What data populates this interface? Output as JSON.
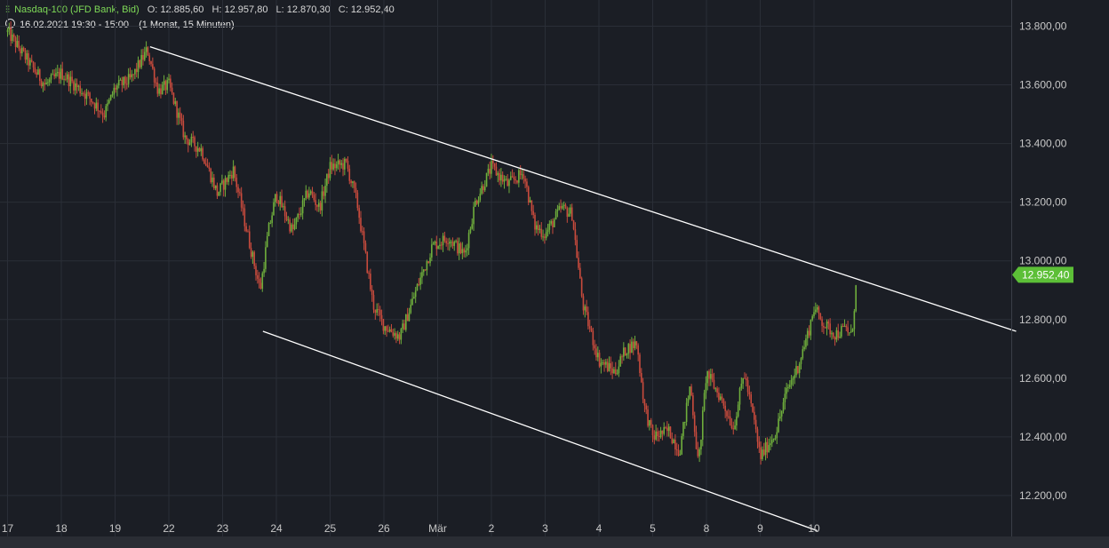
{
  "header": {
    "symbol_icon": "candles-icon",
    "instrument": "Nasdaq-100 (JFD Bank, Bid)",
    "open_label": "O:",
    "open": "12.885,60",
    "high_label": "H:",
    "high": "12.957,80",
    "low_label": "L:",
    "low": "12.870,30",
    "close_label": "C:",
    "close": "12.952,40",
    "clock_icon": "clock-icon",
    "datetime": "16.02.2021 19:30 - 15:00",
    "period": "(1 Monat, 15 Minuten)"
  },
  "colors": {
    "background": "#1b1e25",
    "up": "#6fae3c",
    "down": "#c94b3d",
    "price_badge": "#5cbf37",
    "trendline": "#ffffff"
  },
  "chart_data": {
    "type": "candlestick",
    "title": "",
    "xlabel": "",
    "ylabel": "",
    "grid": true,
    "ylim": [
      12080,
      13880
    ],
    "y_ticks": [
      12200,
      12400,
      12600,
      12800,
      13000,
      13200,
      13400,
      13600,
      13800
    ],
    "y_tick_labels": [
      "12.200,00",
      "12.400,00",
      "12.600,00",
      "12.800,00",
      "13.000,00",
      "13.200,00",
      "13.400,00",
      "13.600,00",
      "13.800,00"
    ],
    "x_tick_labels": [
      "17",
      "18",
      "19",
      "22",
      "23",
      "24",
      "25",
      "26",
      "Mär",
      "2",
      "3",
      "4",
      "5",
      "8",
      "9",
      "10"
    ],
    "last_price": 12952.4,
    "last_price_label": "12.952,40",
    "price_path": [
      {
        "t": 0.0,
        "p": 13780
      },
      {
        "t": 0.5,
        "p": 13650
      },
      {
        "t": 0.7,
        "p": 13600
      },
      {
        "t": 1.0,
        "p": 13640
      },
      {
        "t": 1.5,
        "p": 13560
      },
      {
        "t": 1.8,
        "p": 13500
      },
      {
        "t": 2.0,
        "p": 13590
      },
      {
        "t": 2.3,
        "p": 13620
      },
      {
        "t": 2.6,
        "p": 13720
      },
      {
        "t": 2.8,
        "p": 13580
      },
      {
        "t": 3.0,
        "p": 13600
      },
      {
        "t": 3.3,
        "p": 13420
      },
      {
        "t": 3.6,
        "p": 13380
      },
      {
        "t": 3.9,
        "p": 13230
      },
      {
        "t": 4.2,
        "p": 13310
      },
      {
        "t": 4.5,
        "p": 13060
      },
      {
        "t": 4.7,
        "p": 12900
      },
      {
        "t": 4.85,
        "p": 13100
      },
      {
        "t": 5.0,
        "p": 13230
      },
      {
        "t": 5.3,
        "p": 13100
      },
      {
        "t": 5.6,
        "p": 13240
      },
      {
        "t": 5.8,
        "p": 13180
      },
      {
        "t": 6.0,
        "p": 13320
      },
      {
        "t": 6.3,
        "p": 13330
      },
      {
        "t": 6.5,
        "p": 13200
      },
      {
        "t": 6.8,
        "p": 12850
      },
      {
        "t": 7.0,
        "p": 12780
      },
      {
        "t": 7.3,
        "p": 12740
      },
      {
        "t": 7.6,
        "p": 12900
      },
      {
        "t": 7.9,
        "p": 13050
      },
      {
        "t": 8.2,
        "p": 13080
      },
      {
        "t": 8.5,
        "p": 13020
      },
      {
        "t": 8.7,
        "p": 13200
      },
      {
        "t": 9.0,
        "p": 13320
      },
      {
        "t": 9.3,
        "p": 13260
      },
      {
        "t": 9.6,
        "p": 13300
      },
      {
        "t": 9.8,
        "p": 13120
      },
      {
        "t": 10.0,
        "p": 13090
      },
      {
        "t": 10.3,
        "p": 13180
      },
      {
        "t": 10.5,
        "p": 13160
      },
      {
        "t": 10.7,
        "p": 12850
      },
      {
        "t": 11.0,
        "p": 12660
      },
      {
        "t": 11.3,
        "p": 12620
      },
      {
        "t": 11.5,
        "p": 12700
      },
      {
        "t": 11.7,
        "p": 12720
      },
      {
        "t": 11.85,
        "p": 12500
      },
      {
        "t": 12.0,
        "p": 12400
      },
      {
        "t": 12.3,
        "p": 12420
      },
      {
        "t": 12.5,
        "p": 12350
      },
      {
        "t": 12.7,
        "p": 12580
      },
      {
        "t": 12.85,
        "p": 12300
      },
      {
        "t": 13.0,
        "p": 12620
      },
      {
        "t": 13.3,
        "p": 12520
      },
      {
        "t": 13.5,
        "p": 12430
      },
      {
        "t": 13.7,
        "p": 12620
      },
      {
        "t": 13.9,
        "p": 12440
      },
      {
        "t": 14.0,
        "p": 12330
      },
      {
        "t": 14.3,
        "p": 12420
      },
      {
        "t": 14.5,
        "p": 12560
      },
      {
        "t": 14.7,
        "p": 12640
      },
      {
        "t": 14.9,
        "p": 12760
      },
      {
        "t": 15.0,
        "p": 12840
      },
      {
        "t": 15.2,
        "p": 12780
      },
      {
        "t": 15.4,
        "p": 12750
      },
      {
        "t": 15.6,
        "p": 12770
      },
      {
        "t": 15.7,
        "p": 12740
      },
      {
        "t": 15.8,
        "p": 12950
      }
    ],
    "trendlines": [
      {
        "name": "upper",
        "t1": 2.65,
        "p1": 13730,
        "t2": 18.76,
        "p2": 12760
      },
      {
        "name": "lower",
        "t1": 4.75,
        "p1": 12760,
        "t2": 15.06,
        "p2": 12080
      }
    ]
  }
}
